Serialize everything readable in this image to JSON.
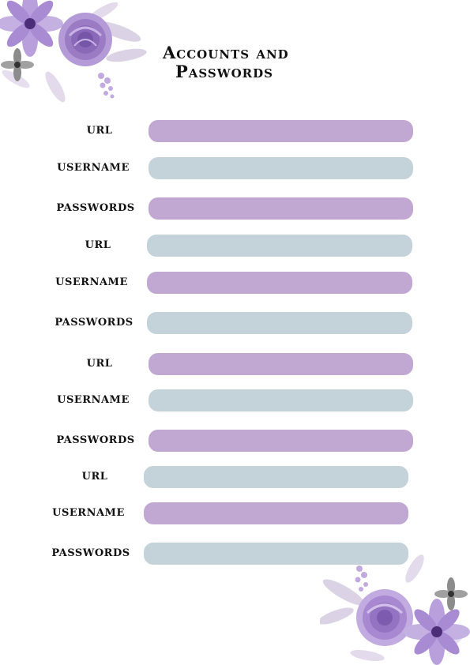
{
  "title": {
    "line1": "Accounts and",
    "line2": "Passwords"
  },
  "colors": {
    "purple_field": "#c1a8d3",
    "gray_field": "#c4d2da",
    "flower_main": "#9b7cc4",
    "flower_light": "#d6c6ea",
    "leaf": "#cfc3dc"
  },
  "entries": [
    {
      "url_label": "URL",
      "username_label": "USERNAME",
      "password_label": "PASSWORDS"
    },
    {
      "url_label": "URL",
      "username_label": "USERNAME",
      "password_label": "PASSWORDS"
    },
    {
      "url_label": "URL",
      "username_label": "USERNAME",
      "password_label": "PASSWORDS"
    },
    {
      "url_label": "URL",
      "username_label": "USERNAME",
      "password_label": "PASSWORDS"
    }
  ]
}
